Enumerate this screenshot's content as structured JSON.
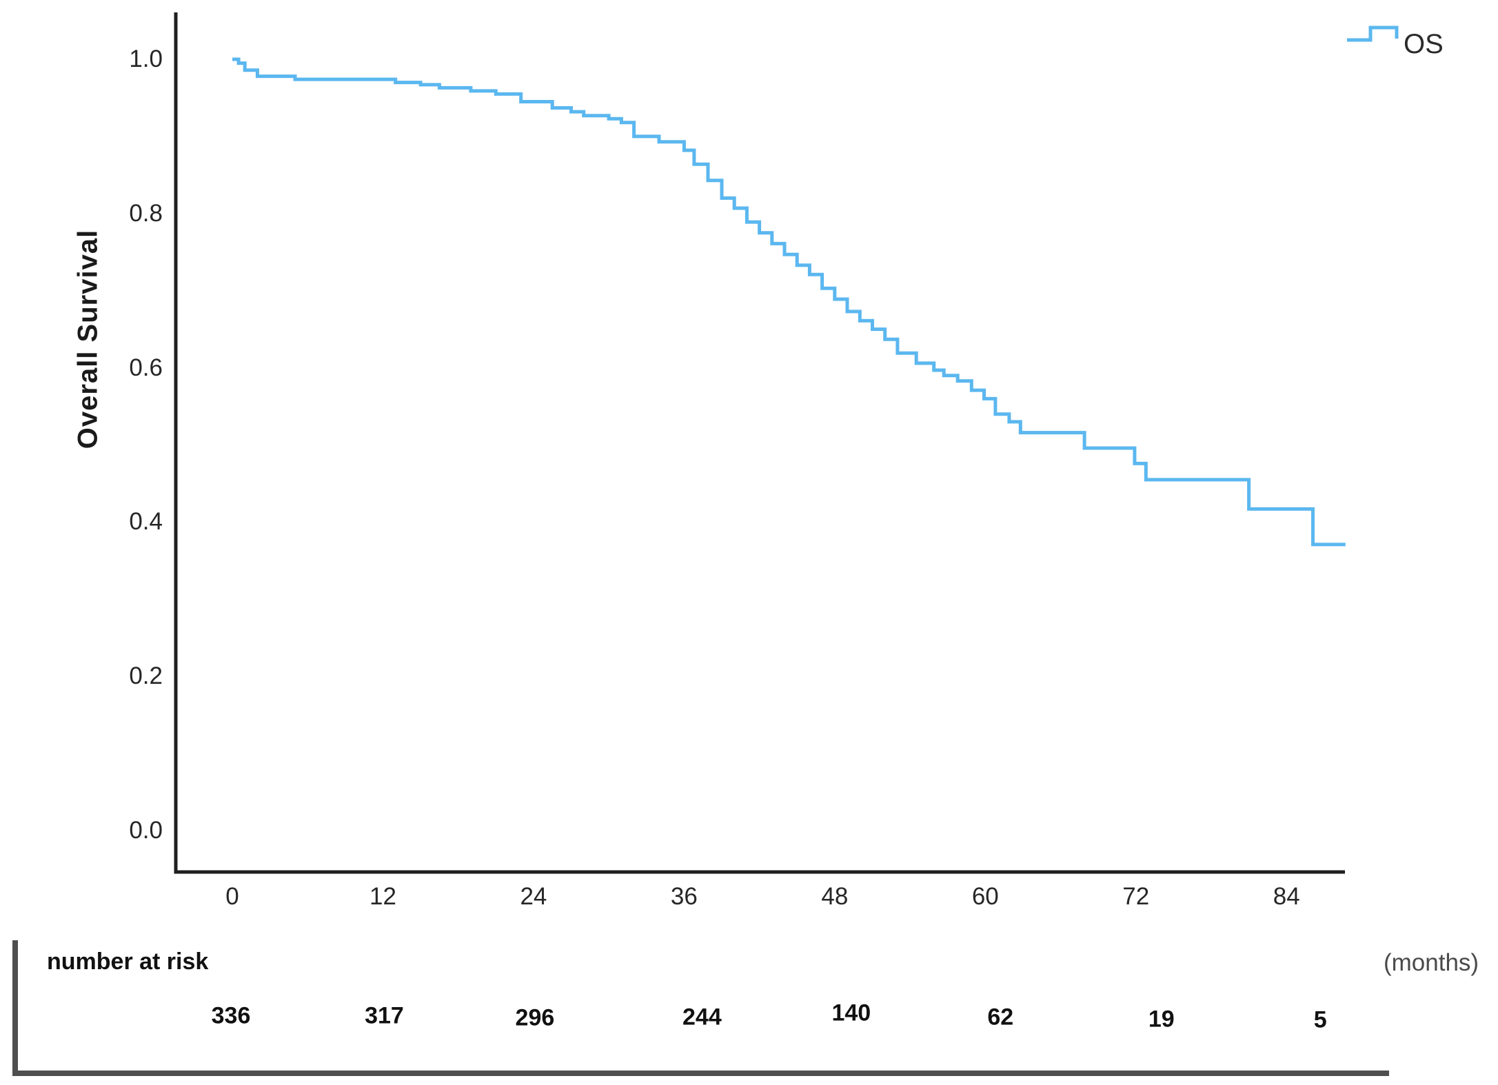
{
  "figure": {
    "ylabel": "Overall Survival",
    "legend_label": "OS",
    "months_label": "(months)",
    "risk_title": "number at risk"
  },
  "colors": {
    "curve": "#5BB7EF",
    "axis": "#1f1f1f",
    "text": "#262626",
    "risk_border": "#4f4f4f",
    "months_text": "#4a4a4a"
  },
  "chart_data": {
    "type": "line",
    "subtype": "kaplan-meier-step-curve",
    "title": "",
    "xlabel": "(months)",
    "ylabel": "Overall Survival",
    "x_ticks": [
      0,
      12,
      24,
      36,
      48,
      60,
      72,
      84
    ],
    "y_ticks": [
      "1.0",
      "0.8",
      "0.6",
      "0.4",
      "0.2",
      "0.0"
    ],
    "y_tick_values": [
      1.0,
      0.8,
      0.6,
      0.4,
      0.2,
      0.0
    ],
    "xlim": [
      -4.5,
      88.8
    ],
    "ylim": [
      0.0,
      1.07
    ],
    "grid": false,
    "legend_position": "top-right",
    "series": [
      {
        "name": "OS",
        "color": "#5BB7EF",
        "end_time": 88.7,
        "step_points": [
          [
            0,
            1.0
          ],
          [
            0.5,
            0.995
          ],
          [
            1,
            0.986
          ],
          [
            2,
            0.978
          ],
          [
            5,
            0.974
          ],
          [
            13,
            0.97
          ],
          [
            15,
            0.967
          ],
          [
            16.5,
            0.963
          ],
          [
            19,
            0.959
          ],
          [
            21,
            0.955
          ],
          [
            23,
            0.945
          ],
          [
            25.5,
            0.937
          ],
          [
            27,
            0.932
          ],
          [
            28,
            0.927
          ],
          [
            30,
            0.923
          ],
          [
            31,
            0.918
          ],
          [
            32,
            0.9
          ],
          [
            34,
            0.893
          ],
          [
            36,
            0.882
          ],
          [
            36.8,
            0.864
          ],
          [
            37.9,
            0.843
          ],
          [
            39,
            0.82
          ],
          [
            40,
            0.807
          ],
          [
            41,
            0.789
          ],
          [
            42,
            0.775
          ],
          [
            43,
            0.761
          ],
          [
            44,
            0.747
          ],
          [
            45,
            0.733
          ],
          [
            46,
            0.721
          ],
          [
            47,
            0.703
          ],
          [
            48,
            0.689
          ],
          [
            49,
            0.673
          ],
          [
            50,
            0.661
          ],
          [
            51,
            0.65
          ],
          [
            52,
            0.637
          ],
          [
            53,
            0.619
          ],
          [
            54.5,
            0.606
          ],
          [
            55.9,
            0.597
          ],
          [
            56.7,
            0.59
          ],
          [
            57.8,
            0.583
          ],
          [
            58.9,
            0.571
          ],
          [
            59.9,
            0.56
          ],
          [
            60.8,
            0.54
          ],
          [
            61.9,
            0.53
          ],
          [
            62.8,
            0.516
          ],
          [
            67.9,
            0.496
          ],
          [
            71.9,
            0.476
          ],
          [
            72.8,
            0.455
          ],
          [
            81,
            0.417
          ],
          [
            86.1,
            0.371
          ]
        ]
      }
    ],
    "number_at_risk": {
      "label": "number at risk",
      "times": [
        0,
        12,
        24,
        36,
        48,
        60,
        72,
        84
      ],
      "values": [
        336,
        317,
        296,
        244,
        140,
        62,
        19,
        5
      ]
    }
  }
}
